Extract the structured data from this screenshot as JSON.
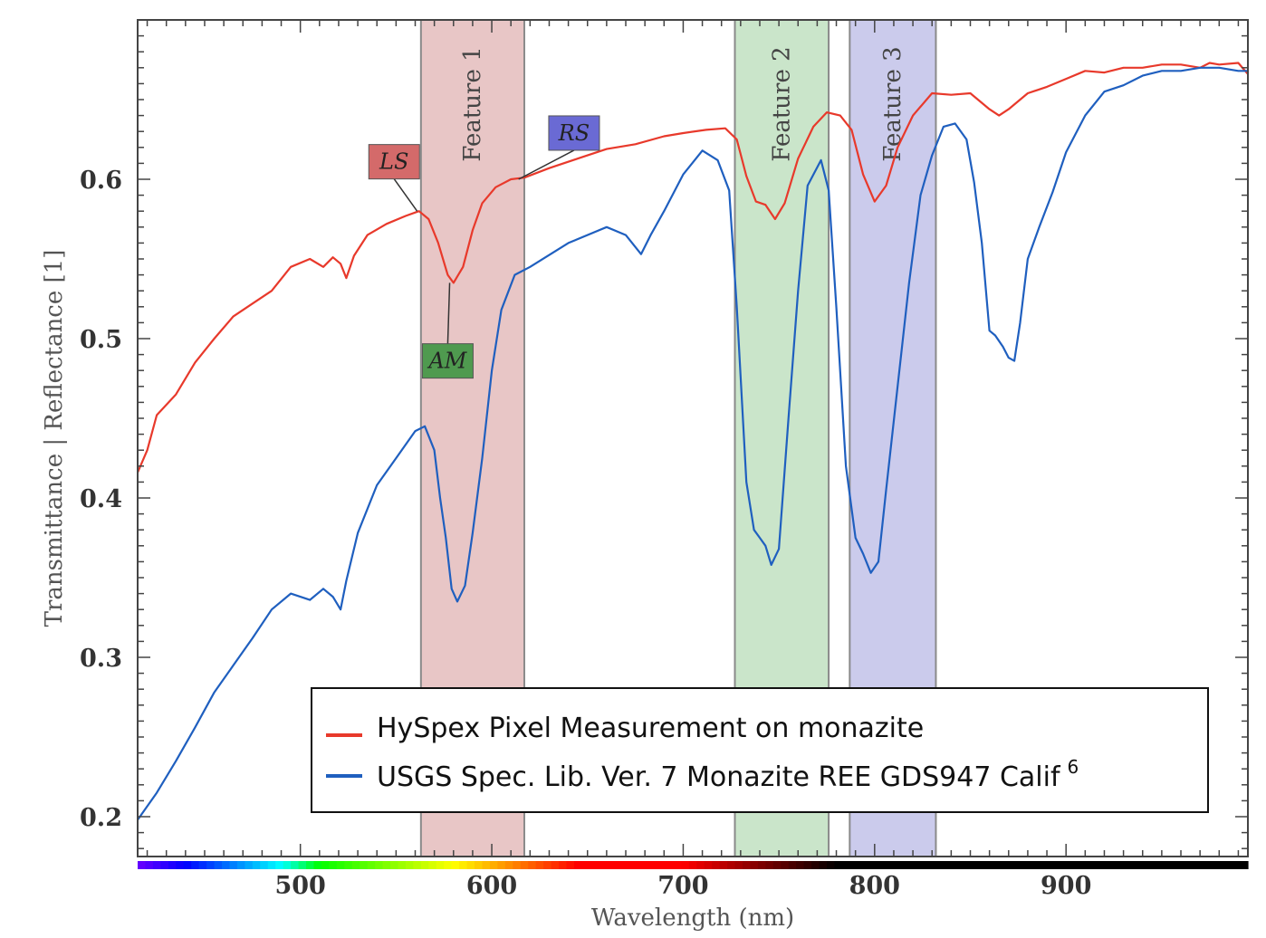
{
  "chart_data": {
    "type": "line",
    "xlabel": "Wavelength (nm)",
    "ylabel": "Transmittance | Reflectance [1]",
    "xlim": [
      415,
      995
    ],
    "ylim": [
      0.175,
      0.7
    ],
    "xticks": [
      500,
      600,
      700,
      800,
      900
    ],
    "yticks": [
      0.2,
      0.3,
      0.4,
      0.5,
      0.6
    ],
    "grid": false,
    "legend_position": "bottom-right",
    "legend": [
      {
        "label": "HySpex Pixel Measurement on monazite",
        "superscript": "",
        "color": "#e8392b"
      },
      {
        "label": "USGS Spec. Lib. Ver. 7 Monazite REE GDS947 Calif",
        "superscript": "6",
        "color": "#1f5fbf"
      }
    ],
    "bands": [
      {
        "label": "Feature 1",
        "start": 563,
        "end": 617,
        "color": "#d9a0a0"
      },
      {
        "label": "Feature 2",
        "start": 727,
        "end": 776,
        "color": "#a6d3a6"
      },
      {
        "label": "Feature 3",
        "start": 787,
        "end": 832,
        "color": "#a8a8e0"
      }
    ],
    "annotations": [
      {
        "label": "LS",
        "x": 561,
        "y": 0.58,
        "box_x": 549,
        "box_y": 0.611,
        "color": "#d46a6a"
      },
      {
        "label": "AM",
        "x": 578,
        "y": 0.535,
        "box_x": 577,
        "box_y": 0.486,
        "color": "#4f9a4f"
      },
      {
        "label": "RS",
        "x": 614,
        "y": 0.6,
        "box_x": 643,
        "box_y": 0.629,
        "color": "#6a6ad4"
      }
    ],
    "series": [
      {
        "name": "HySpex Pixel Measurement on monazite",
        "color": "#e8392b",
        "x": [
          415,
          420,
          425,
          435,
          445,
          455,
          465,
          475,
          485,
          495,
          505,
          512,
          517,
          521,
          524,
          528,
          535,
          545,
          555,
          562,
          567,
          572,
          577,
          580,
          585,
          590,
          595,
          602,
          610,
          617,
          630,
          645,
          660,
          675,
          690,
          700,
          712,
          722,
          728,
          733,
          738,
          743,
          748,
          753,
          760,
          768,
          775,
          782,
          788,
          794,
          800,
          806,
          812,
          820,
          830,
          840,
          850,
          860,
          865,
          870,
          880,
          890,
          900,
          910,
          920,
          930,
          940,
          950,
          960,
          970,
          975,
          980,
          990,
          995
        ],
        "y": [
          0.416,
          0.43,
          0.452,
          0.465,
          0.485,
          0.5,
          0.514,
          0.522,
          0.53,
          0.545,
          0.55,
          0.545,
          0.551,
          0.547,
          0.538,
          0.552,
          0.565,
          0.572,
          0.577,
          0.58,
          0.575,
          0.56,
          0.54,
          0.535,
          0.545,
          0.568,
          0.585,
          0.595,
          0.6,
          0.601,
          0.607,
          0.613,
          0.619,
          0.622,
          0.627,
          0.629,
          0.631,
          0.632,
          0.625,
          0.602,
          0.586,
          0.584,
          0.575,
          0.585,
          0.613,
          0.633,
          0.642,
          0.64,
          0.631,
          0.603,
          0.586,
          0.596,
          0.62,
          0.64,
          0.654,
          0.653,
          0.654,
          0.644,
          0.64,
          0.644,
          0.654,
          0.658,
          0.663,
          0.668,
          0.667,
          0.67,
          0.67,
          0.672,
          0.672,
          0.67,
          0.673,
          0.672,
          0.673,
          0.666
        ]
      },
      {
        "name": "USGS Spec. Lib. Ver. 7 Monazite REE GDS947 Calif",
        "color": "#1f5fbf",
        "x": [
          415,
          425,
          435,
          445,
          455,
          465,
          475,
          485,
          495,
          505,
          512,
          517,
          521,
          524,
          530,
          540,
          550,
          560,
          565,
          570,
          573,
          576,
          579,
          582,
          586,
          590,
          595,
          600,
          605,
          612,
          620,
          640,
          660,
          670,
          678,
          683,
          690,
          700,
          710,
          718,
          724,
          728,
          733,
          737,
          740,
          743,
          746,
          750,
          755,
          760,
          765,
          772,
          776,
          780,
          785,
          790,
          794,
          798,
          802,
          806,
          812,
          818,
          824,
          830,
          836,
          842,
          848,
          852,
          856,
          860,
          863,
          867,
          870,
          873,
          876,
          880,
          886,
          893,
          900,
          910,
          920,
          930,
          940,
          950,
          960,
          970,
          980,
          990,
          995
        ],
        "y": [
          0.198,
          0.215,
          0.235,
          0.256,
          0.278,
          0.295,
          0.312,
          0.33,
          0.34,
          0.336,
          0.343,
          0.338,
          0.33,
          0.348,
          0.378,
          0.408,
          0.425,
          0.442,
          0.445,
          0.43,
          0.4,
          0.375,
          0.343,
          0.335,
          0.345,
          0.378,
          0.425,
          0.48,
          0.518,
          0.54,
          0.545,
          0.56,
          0.57,
          0.565,
          0.553,
          0.565,
          0.58,
          0.603,
          0.618,
          0.612,
          0.593,
          0.52,
          0.41,
          0.38,
          0.375,
          0.37,
          0.358,
          0.368,
          0.45,
          0.53,
          0.596,
          0.612,
          0.593,
          0.52,
          0.42,
          0.375,
          0.365,
          0.353,
          0.36,
          0.405,
          0.47,
          0.535,
          0.59,
          0.615,
          0.633,
          0.635,
          0.625,
          0.598,
          0.56,
          0.505,
          0.502,
          0.495,
          0.488,
          0.486,
          0.51,
          0.55,
          0.57,
          0.592,
          0.617,
          0.64,
          0.655,
          0.659,
          0.665,
          0.668,
          0.668,
          0.67,
          0.67,
          0.668,
          0.668
        ]
      }
    ]
  }
}
